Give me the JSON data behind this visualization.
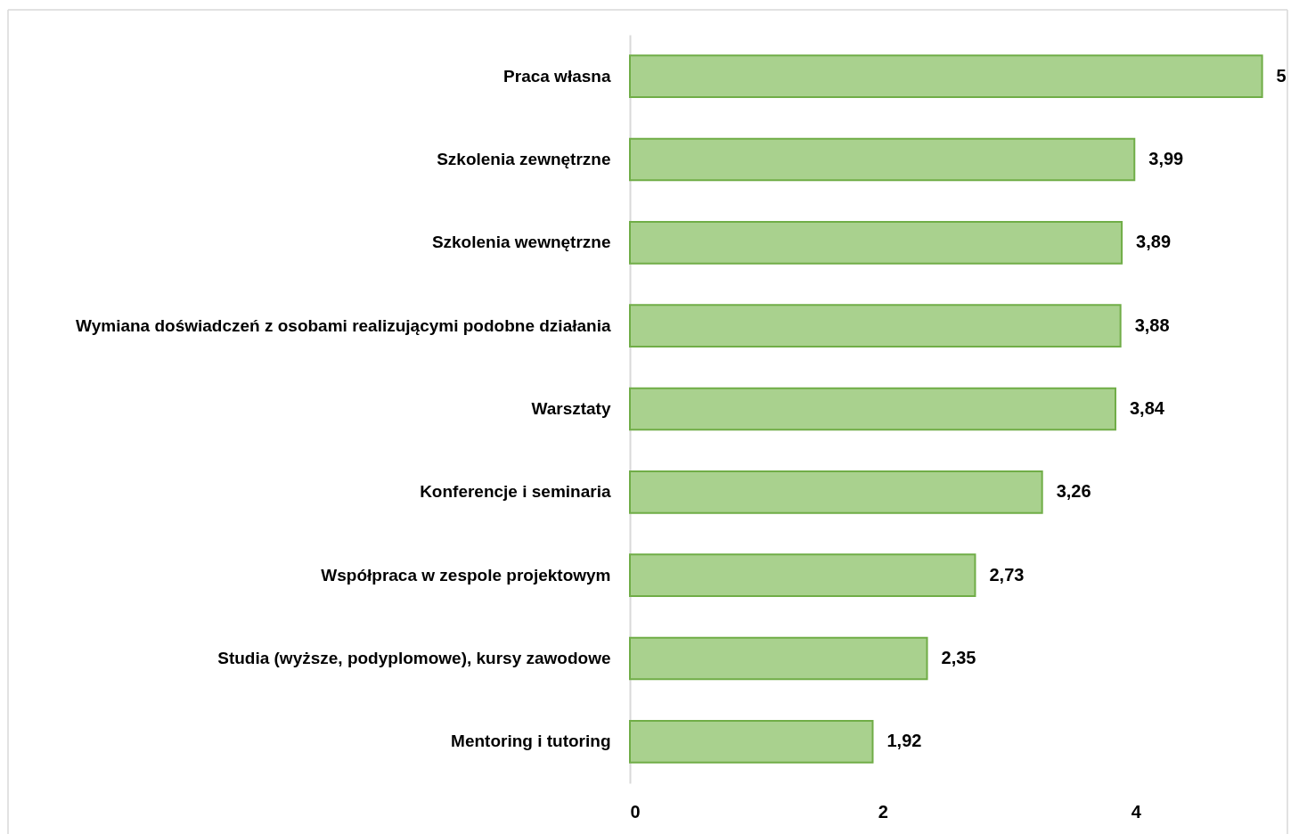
{
  "chart_data": {
    "type": "bar",
    "orientation": "horizontal",
    "categories": [
      "Praca własna",
      "Szkolenia zewnętrzne",
      "Szkolenia wewnętrzne",
      "Wymiana doświadczeń z osobami realizującymi podobne działania",
      "Warsztaty",
      "Konferencje i seminaria",
      "Współpraca w zespole projektowym",
      "Studia (wyższe, podyplomowe), kursy zawodowe",
      "Mentoring i tutoring"
    ],
    "values": [
      5,
      3.99,
      3.89,
      3.88,
      3.84,
      3.26,
      2.73,
      2.35,
      1.92
    ],
    "value_labels": [
      "5",
      "3,99",
      "3,89",
      "3,88",
      "3,84",
      "3,26",
      "2,73",
      "2,35",
      "1,92"
    ],
    "color": "#a9d18e",
    "xlim": [
      0,
      5.2
    ],
    "xticks": [
      0,
      2,
      4
    ]
  }
}
